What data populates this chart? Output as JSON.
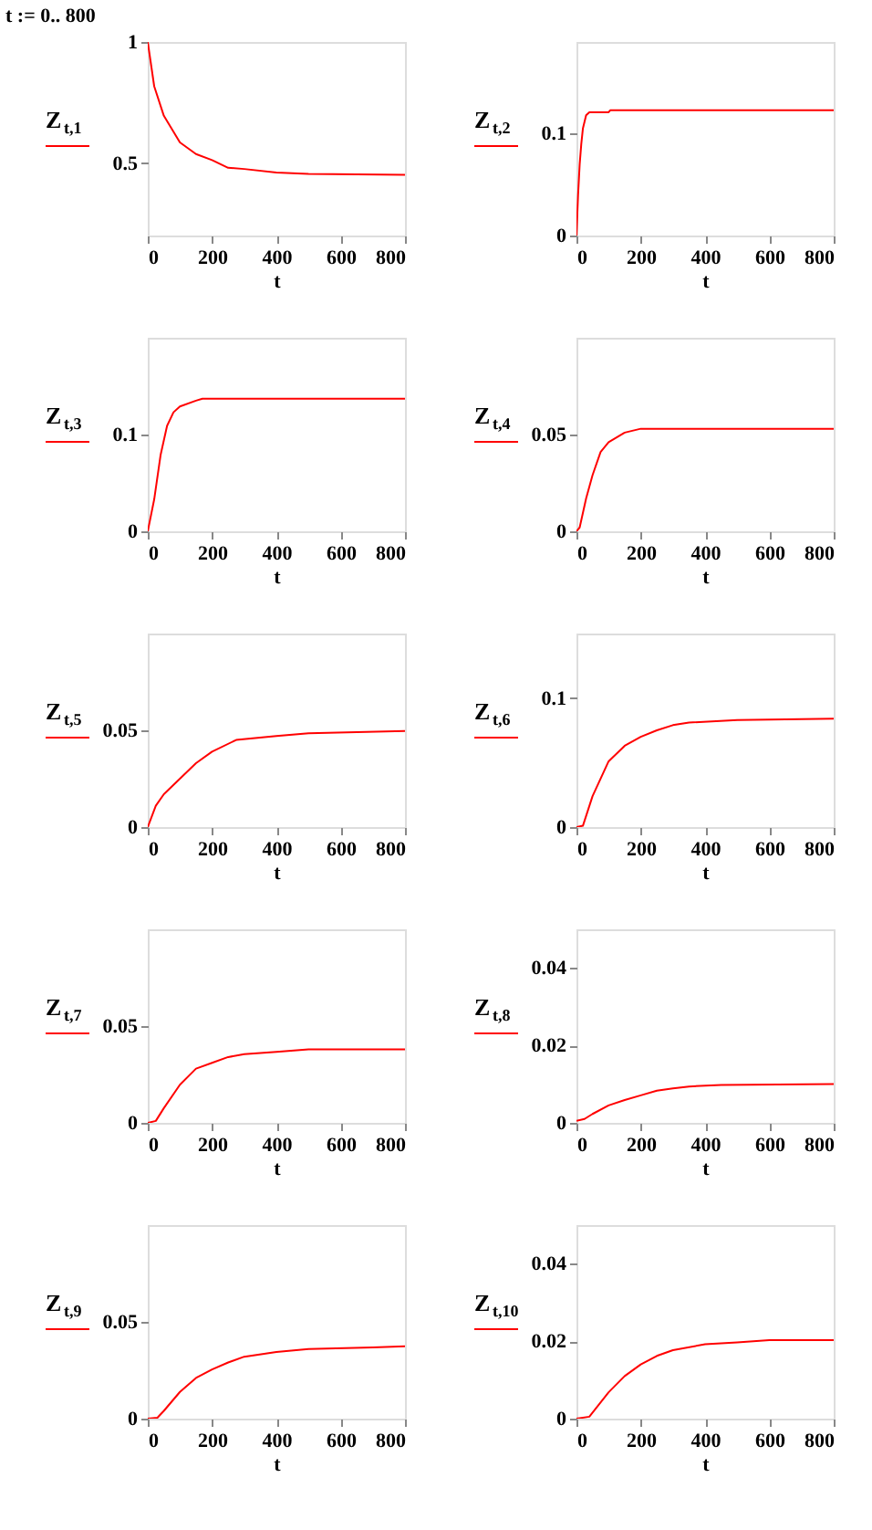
{
  "chart_data": [
    {
      "type": "line",
      "annotations": [
        "t := 0.. 800"
      ],
      "xlabel": "t",
      "ylabel": "Z$_{t,1}$",
      "xlim": [
        0,
        800
      ],
      "xticks": [
        0,
        200,
        400,
        600,
        800
      ],
      "ylim": [
        0.2,
        1
      ],
      "yticks": [
        0.5,
        1
      ],
      "series": [
        {
          "color": "#ff0000",
          "x": [
            0,
            20,
            50,
            100,
            150,
            200,
            250,
            300,
            400,
            500,
            800
          ],
          "values": [
            1,
            0.817,
            0.695,
            0.585,
            0.537,
            0.512,
            0.48,
            0.475,
            0.46,
            0.455,
            0.451
          ]
        }
      ]
    },
    {
      "type": "line",
      "xlabel": "t",
      "ylabel": "Z$_{t,2}$",
      "xlim": [
        0,
        800
      ],
      "xticks": [
        0,
        200,
        400,
        600,
        800
      ],
      "ylim": [
        0,
        0.19
      ],
      "yticks": [
        0,
        0.1
      ],
      "series": [
        {
          "color": "#ff0000",
          "x": [
            0,
            5,
            10,
            15,
            20,
            30,
            40,
            100,
            105,
            800
          ],
          "values": [
            0,
            0.04,
            0.07,
            0.09,
            0.105,
            0.118,
            0.121,
            0.121,
            0.123,
            0.123
          ]
        }
      ]
    },
    {
      "type": "line",
      "xlabel": "t",
      "ylabel": "Z$_{t,3}$",
      "xlim": [
        0,
        800
      ],
      "xticks": [
        0,
        200,
        400,
        600,
        800
      ],
      "ylim": [
        0,
        0.2
      ],
      "yticks": [
        0,
        0.1
      ],
      "series": [
        {
          "color": "#ff0000",
          "x": [
            0,
            20,
            40,
            60,
            80,
            100,
            150,
            170,
            800
          ],
          "values": [
            0,
            0.033,
            0.079,
            0.109,
            0.123,
            0.129,
            0.135,
            0.137,
            0.137
          ]
        }
      ]
    },
    {
      "type": "line",
      "xlabel": "t",
      "ylabel": "Z$_{t,4}$",
      "xlim": [
        0,
        800
      ],
      "xticks": [
        0,
        200,
        400,
        600,
        800
      ],
      "ylim": [
        0,
        0.1
      ],
      "yticks": [
        0,
        0.05
      ],
      "series": [
        {
          "color": "#ff0000",
          "x": [
            0,
            10,
            30,
            50,
            75,
            100,
            150,
            200,
            800
          ],
          "values": [
            0,
            0.002,
            0.017,
            0.029,
            0.041,
            0.046,
            0.051,
            0.053,
            0.053
          ]
        }
      ]
    },
    {
      "type": "line",
      "xlabel": "t",
      "ylabel": "Z$_{t,5}$",
      "xlim": [
        0,
        800
      ],
      "xticks": [
        0,
        200,
        400,
        600,
        800
      ],
      "ylim": [
        0,
        0.1
      ],
      "yticks": [
        0,
        0.05
      ],
      "series": [
        {
          "color": "#ff0000",
          "x": [
            0,
            25,
            50,
            100,
            150,
            200,
            275,
            400,
            500,
            800
          ],
          "values": [
            0,
            0.011,
            0.017,
            0.025,
            0.033,
            0.039,
            0.045,
            0.047,
            0.0485,
            0.0497
          ]
        }
      ]
    },
    {
      "type": "line",
      "xlabel": "t",
      "ylabel": "Z$_{t,6}$",
      "xlim": [
        0,
        800
      ],
      "xticks": [
        0,
        200,
        400,
        600,
        800
      ],
      "ylim": [
        0,
        0.15
      ],
      "yticks": [
        0,
        0.1
      ],
      "series": [
        {
          "color": "#ff0000",
          "x": [
            0,
            20,
            50,
            100,
            150,
            200,
            250,
            300,
            350,
            500,
            800
          ],
          "values": [
            0,
            0.001,
            0.024,
            0.051,
            0.063,
            0.07,
            0.075,
            0.079,
            0.081,
            0.083,
            0.084
          ]
        }
      ]
    },
    {
      "type": "line",
      "xlabel": "t",
      "ylabel": "Z$_{t,7}$",
      "xlim": [
        0,
        800
      ],
      "xticks": [
        0,
        200,
        400,
        600,
        800
      ],
      "ylim": [
        0,
        0.1
      ],
      "yticks": [
        0,
        0.05
      ],
      "series": [
        {
          "color": "#ff0000",
          "x": [
            0,
            25,
            50,
            100,
            150,
            200,
            250,
            300,
            400,
            500,
            800
          ],
          "values": [
            0,
            0.001,
            0.0076,
            0.0197,
            0.028,
            0.031,
            0.034,
            0.0355,
            0.0367,
            0.038,
            0.038
          ]
        }
      ]
    },
    {
      "type": "line",
      "xlabel": "t",
      "ylabel": "Z$_{t,8}$",
      "xlim": [
        0,
        800
      ],
      "xticks": [
        0,
        200,
        400,
        600,
        800
      ],
      "ylim": [
        0,
        0.05
      ],
      "yticks": [
        0,
        0.02,
        0.04
      ],
      "series": [
        {
          "color": "#ff0000",
          "x": [
            0,
            25,
            50,
            100,
            150,
            200,
            250,
            300,
            350,
            450,
            800
          ],
          "values": [
            0.0005,
            0.001,
            0.0023,
            0.0045,
            0.0059,
            0.0071,
            0.0083,
            0.0089,
            0.0094,
            0.0098,
            0.01
          ]
        }
      ]
    },
    {
      "type": "line",
      "xlabel": "t",
      "ylabel": "Z$_{t,9}$",
      "xlim": [
        0,
        800
      ],
      "xticks": [
        0,
        200,
        400,
        600,
        800
      ],
      "ylim": [
        0,
        0.1
      ],
      "yticks": [
        0,
        0.05
      ],
      "series": [
        {
          "color": "#ff0000",
          "x": [
            0,
            30,
            50,
            100,
            150,
            200,
            250,
            300,
            400,
            500,
            700,
            800
          ],
          "values": [
            0,
            0.0005,
            0.004,
            0.0138,
            0.021,
            0.0254,
            0.029,
            0.032,
            0.0344,
            0.036,
            0.0368,
            0.0374
          ]
        }
      ]
    },
    {
      "type": "line",
      "xlabel": "t",
      "ylabel": "Z$_{t,10}$",
      "xlim": [
        0,
        800
      ],
      "xticks": [
        0,
        200,
        400,
        600,
        800
      ],
      "ylim": [
        0,
        0.05
      ],
      "yticks": [
        0,
        0.02,
        0.04
      ],
      "series": [
        {
          "color": "#ff0000",
          "x": [
            0,
            40,
            100,
            150,
            200,
            250,
            300,
            400,
            500,
            600,
            800
          ],
          "values": [
            0,
            0.0005,
            0.0068,
            0.011,
            0.014,
            0.0162,
            0.0177,
            0.0192,
            0.0197,
            0.0203,
            0.0203
          ]
        }
      ]
    }
  ]
}
